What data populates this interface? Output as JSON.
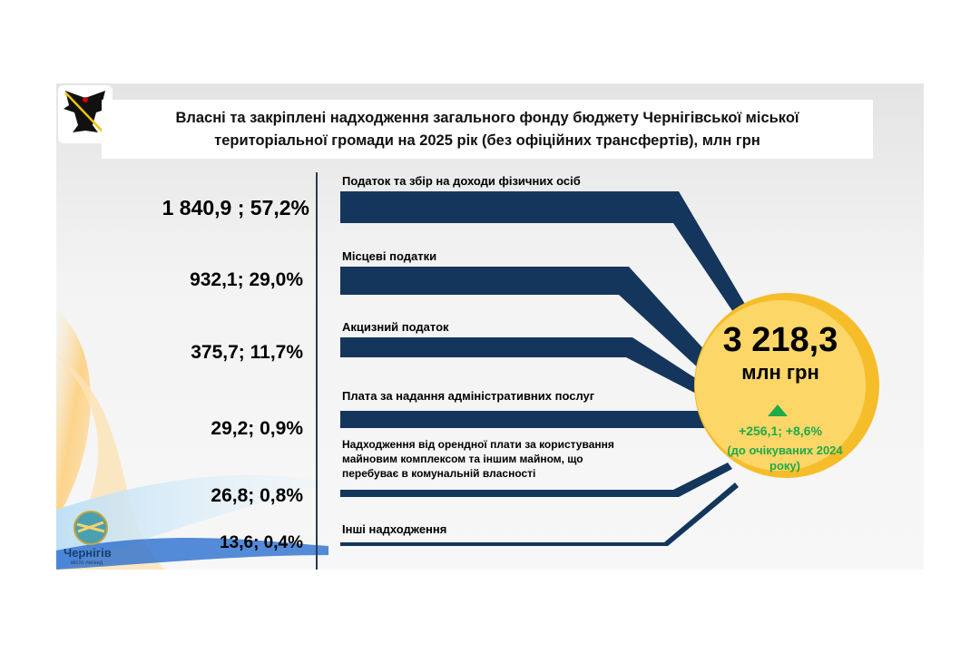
{
  "title": "Власні та закріплені надходження загального фонду бюджету Чернігівської міської територіальної громади на 2025 рік (без офіційних трансфертів), млн грн",
  "colors": {
    "bar": "#14365c",
    "circle": "#fcd667",
    "circle_ring": "#f6bd2a",
    "growth": "#1faa4b"
  },
  "items": [
    {
      "value": "1 840,9 ; 57,2%",
      "label": "Податок та збір на доходи фізичних осіб"
    },
    {
      "value": "932,1; 29,0%",
      "label": "Місцеві податки"
    },
    {
      "value": "375,7; 11,7%",
      "label": "Акцизний податок"
    },
    {
      "value": "29,2; 0,9%",
      "label": "Плата за надання адміністративних послуг"
    },
    {
      "value": "26,8; 0,8%",
      "label": "Надходження від орендної плати за користування майновим комплексом та іншим майном, що перебуває в комунальній власності"
    },
    {
      "value": "13,6; 0,4%",
      "label": "Інші надходження"
    }
  ],
  "total": {
    "value": "3 218,3",
    "unit": "млн грн",
    "growth_icon": "triangle-up",
    "growth": "+256,1; +8,6%",
    "note": "(до очікуваних 2024 року)"
  },
  "logo": {
    "name": "Чернігів",
    "tagline": "місто легенд"
  }
}
